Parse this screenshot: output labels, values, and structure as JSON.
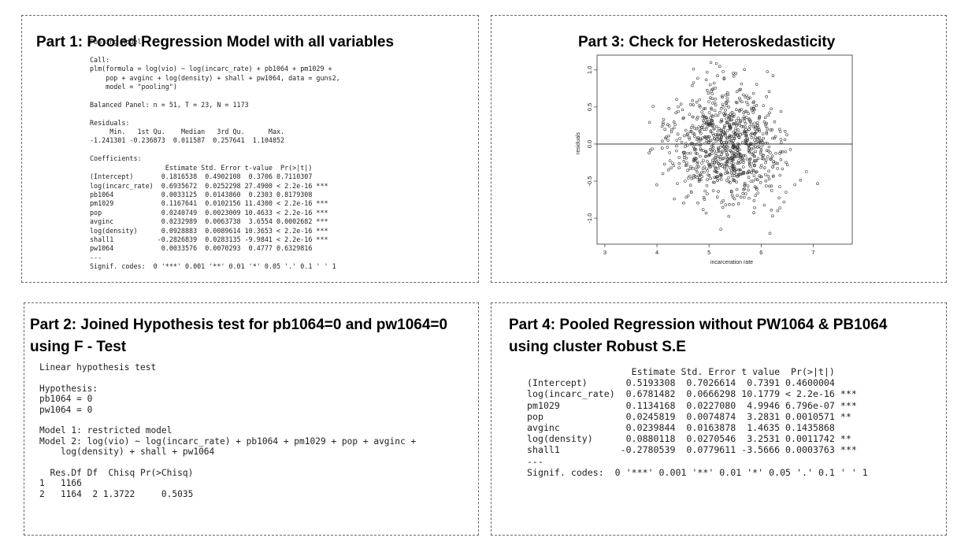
{
  "panel1": {
    "title": "Part 1: Pooled Regression Model with all variables",
    "output": "Pooling Model\n\nCall:\nplm(formula = log(vio) ~ log(incarc_rate) + pb1064 + pm1029 +\n    pop + avginc + log(density) + shall + pw1064, data = guns2,\n    model = \"pooling\")\n\nBalanced Panel: n = 51, T = 23, N = 1173\n\nResiduals:\n     Min.   1st Qu.    Median   3rd Qu.      Max.\n-1.241301 -0.236873  0.011587  0.257641  1.104852\n\nCoefficients:\n                   Estimate Std. Error t-value  Pr(>|t|)\n(Intercept)       0.1816538  0.4902108  0.3706 0.7110307\nlog(incarc_rate)  0.6935672  0.0252298 27.4900 < 2.2e-16 ***\npb1064            0.0033125  0.0143860  0.2303 0.8179308\npm1029            0.1167641  0.0102156 11.4300 < 2.2e-16 ***\npop               0.0240749  0.0023009 10.4633 < 2.2e-16 ***\navginc            0.0232989  0.0063738  3.6554 0.0002682 ***\nlog(density)      0.0928883  0.0089614 10.3653 < 2.2e-16 ***\nshall1           -0.2826839  0.0283135 -9.9841 < 2.2e-16 ***\npw1064            0.0033576  0.0070293  0.4777 0.6329816\n---\nSignif. codes:  0 '***' 0.001 '**' 0.01 '*' 0.05 '.' 0.1 ' ' 1"
  },
  "panel2": {
    "title_line1": "Part 2: Joined Hypothesis test for pb1064=0 and pw1064=0",
    "title_line2": "using F - Test",
    "output": "Linear hypothesis test\n\nHypothesis:\npb1064 = 0\npw1064 = 0\n\nModel 1: restricted model\nModel 2: log(vio) ~ log(incarc_rate) + pb1064 + pm1029 + pop + avginc +\n    log(density) + shall + pw1064\n\n  Res.Df Df  Chisq Pr(>Chisq)\n1   1166\n2   1164  2 1.3722     0.5035"
  },
  "panel3": {
    "title": "Part 3: Check for Heteroskedasticity",
    "plot": {
      "xlabel": "incarceration rate",
      "ylabel": "residuals",
      "x_ticks": [
        "3",
        "4",
        "5",
        "6",
        "7"
      ],
      "y_ticks": [
        "-1.0",
        "-0.5",
        "0.0",
        "0.5",
        "1.0"
      ],
      "point_color": "#333333"
    }
  },
  "panel4": {
    "title_line1": "Part 4: Pooled Regression without PW1064 & PB1064",
    "title_line2": "using  cluster Robust S.E",
    "output": "                   Estimate Std. Error t value  Pr(>|t|)\n(Intercept)       0.5193308  0.7026614  0.7391 0.4600004\nlog(incarc_rate)  0.6781482  0.0666298 10.1779 < 2.2e-16 ***\npm1029            0.1134168  0.0227080  4.9946 6.796e-07 ***\npop               0.0245819  0.0074874  3.2831 0.0010571 **\navginc            0.0239844  0.0163878  1.4635 0.1435868\nlog(density)      0.0880118  0.0270546  3.2531 0.0011742 **\nshall1           -0.2780539  0.0779611 -3.5666 0.0003763 ***\n---\nSignif. codes:  0 '***' 0.001 '**' 0.01 '*' 0.05 '.' 0.1 ' ' 1"
  }
}
